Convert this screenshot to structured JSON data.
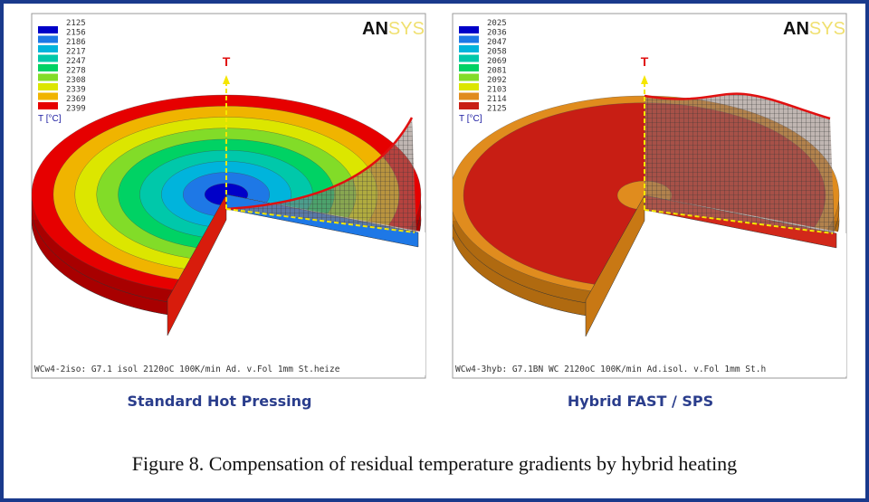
{
  "panels": [
    {
      "logo": [
        "AN",
        "SYS"
      ],
      "axis_label": "T",
      "legend": {
        "labels": [
          "2125",
          "2156",
          "2186",
          "2217",
          "2247",
          "2278",
          "2308",
          "2339",
          "2369",
          "2399"
        ],
        "unit": "T [°C]",
        "colors": [
          "#0000c8",
          "#1e78e6",
          "#00b4dc",
          "#00c8aa",
          "#00d264",
          "#82dc28",
          "#dce600",
          "#f0b400",
          "#e60000"
        ]
      },
      "footer": "WCw4-2iso: G7.1 isol 2120oC 100K/min Ad. v.Fol 1mm St.heize",
      "caption": "Standard Hot Pressing"
    },
    {
      "logo": [
        "AN",
        "SYS"
      ],
      "axis_label": "T",
      "legend": {
        "labels": [
          "2025",
          "2036",
          "2047",
          "2058",
          "2069",
          "2081",
          "2092",
          "2103",
          "2114",
          "2125"
        ],
        "unit": "T [°C]",
        "colors": [
          "#0000c8",
          "#1e78e6",
          "#00b4dc",
          "#00c8aa",
          "#00d264",
          "#82dc28",
          "#dce600",
          "#e08c1e",
          "#c81e14"
        ]
      },
      "footer": "WCw4-3hyb: G7.1BN WC 2120oC 100K/min Ad.isol. v.Fol 1mm St.h",
      "caption": "Hybrid FAST / SPS"
    }
  ],
  "figure_caption": "Figure 8. Compensation of residual temperature gradients by hybrid heating"
}
